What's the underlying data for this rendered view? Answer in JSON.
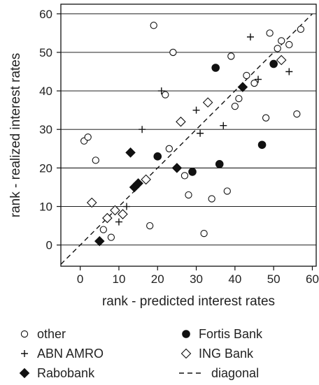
{
  "chart_data": {
    "type": "scatter",
    "title": "",
    "xlabel": "rank - predicted interest rates",
    "ylabel": "rank - realized interest rates",
    "xlim": [
      -5,
      61
    ],
    "ylim": [
      -5.5,
      62.5
    ],
    "xticks": [
      "0",
      "10",
      "20",
      "30",
      "40",
      "50",
      "60"
    ],
    "yticks": [
      "0",
      "10",
      "20",
      "30",
      "40",
      "50",
      "60"
    ],
    "grid": "horizontal",
    "legend_position": "bottom",
    "series": [
      {
        "name": "other",
        "marker": "open-circle",
        "points": [
          [
            1,
            27
          ],
          [
            2,
            28
          ],
          [
            4,
            22
          ],
          [
            6,
            4
          ],
          [
            8,
            2
          ],
          [
            18,
            5
          ],
          [
            19,
            57
          ],
          [
            22,
            39
          ],
          [
            23,
            25
          ],
          [
            24,
            50
          ],
          [
            27,
            18
          ],
          [
            28,
            13
          ],
          [
            32,
            3
          ],
          [
            34,
            12
          ],
          [
            38,
            14
          ],
          [
            39,
            49
          ],
          [
            40,
            36
          ],
          [
            41,
            38
          ],
          [
            43,
            44
          ],
          [
            45,
            42
          ],
          [
            48,
            33
          ],
          [
            49,
            55
          ],
          [
            51,
            51
          ],
          [
            52,
            53
          ],
          [
            54,
            52
          ],
          [
            56,
            34
          ],
          [
            57,
            56
          ]
        ]
      },
      {
        "name": "ABN AMRO",
        "marker": "plus",
        "points": [
          [
            10,
            6
          ],
          [
            12,
            10
          ],
          [
            16,
            30
          ],
          [
            21,
            40
          ],
          [
            30,
            35
          ],
          [
            31,
            29
          ],
          [
            37,
            31
          ],
          [
            44,
            54
          ],
          [
            46,
            43
          ],
          [
            54,
            45
          ]
        ]
      },
      {
        "name": "Fortis Bank",
        "marker": "filled-circle",
        "points": [
          [
            20,
            23
          ],
          [
            29,
            19
          ],
          [
            35,
            46
          ],
          [
            36,
            21
          ],
          [
            47,
            26
          ],
          [
            50,
            47
          ]
        ]
      },
      {
        "name": "ING Bank",
        "marker": "open-diamond",
        "points": [
          [
            3,
            11
          ],
          [
            7,
            7
          ],
          [
            9,
            9
          ],
          [
            11,
            8
          ],
          [
            17,
            17
          ],
          [
            26,
            32
          ],
          [
            33,
            37
          ],
          [
            52,
            48
          ]
        ]
      },
      {
        "name": "Rabobank",
        "marker": "filled-diamond",
        "points": [
          [
            5,
            1
          ],
          [
            13,
            24
          ],
          [
            14,
            15
          ],
          [
            15,
            16
          ],
          [
            25,
            20
          ],
          [
            42,
            41
          ]
        ]
      }
    ],
    "diagonal": {
      "name": "diagonal",
      "from": [
        -5,
        -5
      ],
      "to": [
        60,
        60
      ],
      "style": "dashed"
    },
    "legend": [
      {
        "label": "other",
        "marker": "open-circle"
      },
      {
        "label": "Fortis Bank",
        "marker": "filled-circle"
      },
      {
        "label": "ABN AMRO",
        "marker": "plus"
      },
      {
        "label": "ING Bank",
        "marker": "open-diamond"
      },
      {
        "label": "Rabobank",
        "marker": "filled-diamond"
      },
      {
        "label": "diagonal",
        "marker": "dashed-line"
      }
    ],
    "colors": {
      "ink": "#111111",
      "grid": "#000000"
    }
  }
}
